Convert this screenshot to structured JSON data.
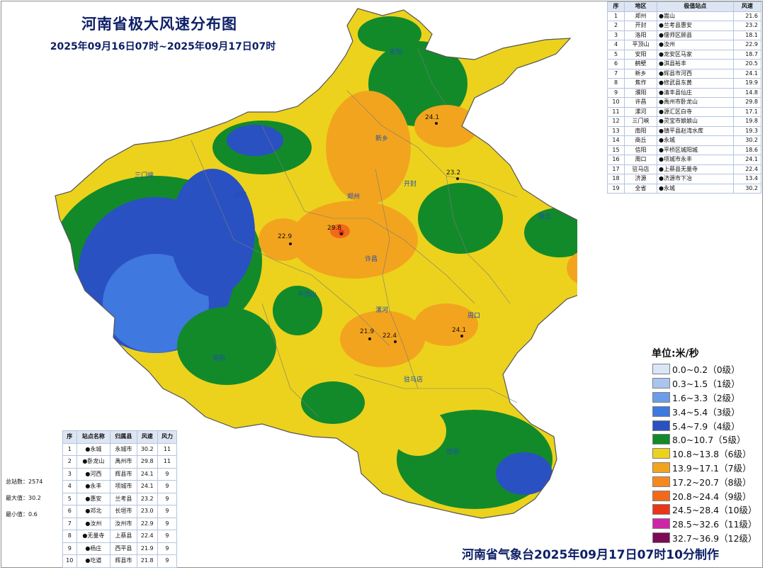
{
  "title": "河南省极大风速分布图",
  "subtitle": "2025年09月16日07时~2025年09月17日07时",
  "footer": "河南省气象台2025年09月17日07时10分制作",
  "legend_unit": "单位:米/秒",
  "legend": [
    {
      "label": "0.0~0.2（0级）",
      "color": "#d9e6f7"
    },
    {
      "label": "0.3~1.5（1级）",
      "color": "#a9c5ee"
    },
    {
      "label": "1.6~3.3（2级）",
      "color": "#6d9ce8"
    },
    {
      "label": "3.4~5.4（3级）",
      "color": "#3f78de"
    },
    {
      "label": "5.4~7.9（4级）",
      "color": "#2a51c2"
    },
    {
      "label": "8.0~10.7（5级）",
      "color": "#128a2a"
    },
    {
      "label": "10.8~13.8（6级）",
      "color": "#ecd21d"
    },
    {
      "label": "13.9~17.1（7级）",
      "color": "#f3a41e"
    },
    {
      "label": "17.2~20.7（8级）",
      "color": "#f6891e"
    },
    {
      "label": "20.8~24.4（9级）",
      "color": "#f26a17"
    },
    {
      "label": "24.5~28.4（10级）",
      "color": "#ea3518"
    },
    {
      "label": "28.5~32.6（11级）",
      "color": "#cf26a8"
    },
    {
      "label": "32.7~36.9（12级）",
      "color": "#7c0a55"
    }
  ],
  "city_table": {
    "headers": [
      "序",
      "地区",
      "极值站点",
      "风速"
    ],
    "rows": [
      [
        "1",
        "郑州",
        "●嵩山",
        "21.6"
      ],
      [
        "2",
        "开封",
        "●兰考县惠安",
        "23.2"
      ],
      [
        "3",
        "洛阳",
        "●偃师区顾县",
        "18.1"
      ],
      [
        "4",
        "平顶山",
        "●汝州",
        "22.9"
      ],
      [
        "5",
        "安阳",
        "●龙安区马家",
        "18.7"
      ],
      [
        "6",
        "鹤壁",
        "●淇县裕丰",
        "20.5"
      ],
      [
        "7",
        "新乡",
        "●辉县市河西",
        "24.1"
      ],
      [
        "8",
        "焦作",
        "●修武县东黄",
        "19.9"
      ],
      [
        "9",
        "濮阳",
        "●清丰县仙庄",
        "14.8"
      ],
      [
        "10",
        "许昌",
        "●禹州市卧龙山",
        "29.8"
      ],
      [
        "11",
        "漯河",
        "●源汇区白寺",
        "17.1"
      ],
      [
        "12",
        "三门峡",
        "●灵宝市娘娘山",
        "19.8"
      ],
      [
        "13",
        "南阳",
        "●镇平县赵湾水库",
        "19.3"
      ],
      [
        "14",
        "商丘",
        "●永城",
        "30.2"
      ],
      [
        "15",
        "信阳",
        "●平桥区城阳城",
        "18.6"
      ],
      [
        "16",
        "周口",
        "●项城市永丰",
        "24.1"
      ],
      [
        "17",
        "驻马店",
        "●上蔡县无量寺",
        "22.4"
      ],
      [
        "18",
        "济源",
        "●济源市下冶",
        "13.4"
      ],
      [
        "19",
        "全省",
        "●永城",
        "30.2"
      ]
    ]
  },
  "stats": {
    "total": "总站数：2574",
    "max": "最大值：30.2",
    "min": "最小值：0.6"
  },
  "top_table": {
    "headers": [
      "序",
      "站点名称",
      "归属县",
      "风速",
      "风力"
    ],
    "rows": [
      [
        "1",
        "●永城",
        "永城市",
        "30.2",
        "11"
      ],
      [
        "2",
        "●卧龙山",
        "禹州市",
        "29.8",
        "11"
      ],
      [
        "3",
        "●河西",
        "辉县市",
        "24.1",
        "9"
      ],
      [
        "4",
        "●永丰",
        "项城市",
        "24.1",
        "9"
      ],
      [
        "5",
        "●惠安",
        "兰考县",
        "23.2",
        "9"
      ],
      [
        "6",
        "●邓北",
        "长垣市",
        "23.0",
        "9"
      ],
      [
        "7",
        "●汝州",
        "汝州市",
        "22.9",
        "9"
      ],
      [
        "8",
        "●无量寺",
        "上蔡县",
        "22.4",
        "9"
      ],
      [
        "9",
        "●杨庄",
        "西平县",
        "21.9",
        "9"
      ],
      [
        "10",
        "●圪道",
        "辉县市",
        "21.8",
        "9"
      ]
    ]
  },
  "map_labels": [
    {
      "name": "卧龙山",
      "value": "29.8"
    },
    {
      "name": "汝州",
      "value": "22.9"
    },
    {
      "name": "永城",
      "value": "30.2"
    },
    {
      "name": "无量寺",
      "value": "22.4"
    },
    {
      "name": "杨庄",
      "value": "21.9"
    },
    {
      "name": "永丰",
      "value": "24.1"
    },
    {
      "name": "惠安",
      "value": "23.2"
    },
    {
      "name": "河西",
      "value": "24.1"
    },
    {
      "name": "郑州",
      "value": ""
    },
    {
      "name": "开封",
      "value": ""
    },
    {
      "name": "新乡",
      "value": ""
    },
    {
      "name": "许昌",
      "value": ""
    },
    {
      "name": "漯河",
      "value": ""
    },
    {
      "name": "平顶山",
      "value": ""
    },
    {
      "name": "驻马店",
      "value": ""
    },
    {
      "name": "信阳",
      "value": ""
    },
    {
      "name": "南阳",
      "value": ""
    },
    {
      "name": "洛阳",
      "value": ""
    },
    {
      "name": "三门峡",
      "value": ""
    },
    {
      "name": "安阳",
      "value": ""
    },
    {
      "name": "商丘",
      "value": ""
    },
    {
      "name": "周口",
      "value": ""
    }
  ]
}
